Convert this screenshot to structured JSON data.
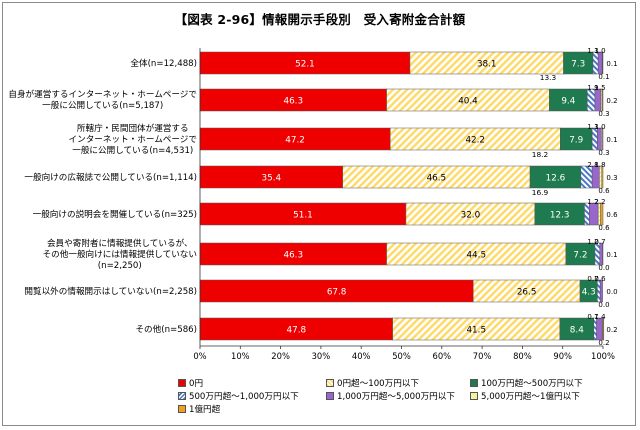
{
  "title": "【図表 2-96】情報開示手段別　受入寄附金合計額",
  "chart_data": {
    "type": "bar",
    "orientation": "horizontal",
    "stacked_percent": true,
    "title": "【図表 2-96】情報開示手段別　受入寄附金合計額",
    "categories": [
      [
        "全体(n=12,488)"
      ],
      [
        "自身が運営するインターネット・ホームページで",
        "一般に公開している(n=5,187)"
      ],
      [
        "所轄庁・民間団体が運営する",
        "インターネット・ホームページで",
        "一般に公開している(n=4,531)"
      ],
      [
        "一般向けの広報誌で公開している(n=1,114)"
      ],
      [
        "一般向けの説明会を開催している(n=325)"
      ],
      [
        "会員や寄附者に情報提供しているが、",
        "その他一般向けには情報提供していない",
        "(n=2,250)"
      ],
      [
        "閲覧以外の情報開示はしていない(n=2,258)"
      ],
      [
        "その他(n=586)"
      ]
    ],
    "series": [
      {
        "name": "0円",
        "color": "#ee0000",
        "values": [
          52.1,
          46.3,
          47.2,
          35.4,
          51.1,
          46.3,
          67.8,
          47.8
        ]
      },
      {
        "name": "0円超～100万円以下",
        "color": "#ffd966",
        "values": [
          38.1,
          40.4,
          42.2,
          46.5,
          32.0,
          44.5,
          26.5,
          41.5
        ]
      },
      {
        "name": "100万円超～500万円以下",
        "color": "#1f7a4f",
        "values": [
          7.3,
          9.4,
          7.9,
          12.6,
          12.3,
          7.2,
          4.3,
          8.4
        ]
      },
      {
        "name": "500万円超～1,000万円以下",
        "color": "#4a78c8",
        "values": [
          1.3,
          1.9,
          1.3,
          2.8,
          1.2,
          1.2,
          0.7,
          0.7
        ]
      },
      {
        "name": "1,000万円超～5,000万円以下",
        "color": "#9966cc",
        "values": [
          1.0,
          1.5,
          1.0,
          1.8,
          2.2,
          0.7,
          0.6,
          1.4
        ]
      },
      {
        "name": "5,000万円超～1億円以下",
        "color": "#e8e86a",
        "values": [
          0.1,
          0.3,
          0.3,
          0.6,
          0.6,
          0.0,
          0.0,
          0.2
        ]
      },
      {
        "name": "1億円超",
        "color": "#f0a020",
        "values": [
          0.1,
          0.2,
          0.1,
          0.3,
          0.6,
          0.1,
          0.0,
          0.2
        ]
      }
    ],
    "value_label_series": [
      "0円",
      "0円超～100万円以下",
      "100万円超～500万円以下"
    ],
    "outside_labels": [
      [
        "1.3",
        "1.0",
        "0.1",
        "0.1"
      ],
      [
        "1.9",
        "1.5",
        "0.3",
        "0.2"
      ],
      [
        "1.3",
        "1.0",
        "0.3",
        "0.1"
      ],
      [
        "2.8",
        "1.8",
        "0.6",
        "0.3"
      ],
      [
        "1.2",
        "2.2",
        "0.6",
        "0.6"
      ],
      [
        "1.2",
        "0.7",
        "0.0",
        "0.1"
      ],
      [
        "0.7",
        "0.6",
        "0.0",
        "0.0"
      ],
      [
        "0.7",
        "1.4",
        "0.2",
        "0.2"
      ]
    ],
    "stray_labels": [
      "13.3",
      "18.2",
      "16.9"
    ],
    "xlim": [
      0,
      100
    ],
    "x_ticks": [
      "0%",
      "10%",
      "20%",
      "30%",
      "40%",
      "50%",
      "60%",
      "70%",
      "80%",
      "90%",
      "100%"
    ],
    "grid": false,
    "legend_position": "bottom"
  }
}
